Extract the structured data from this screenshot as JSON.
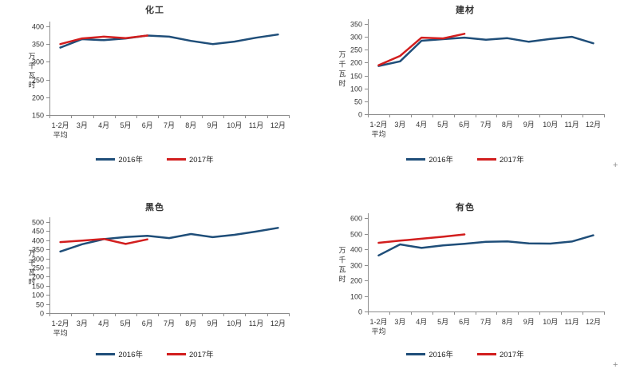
{
  "page": {
    "background": "#ffffff"
  },
  "colors": {
    "series_2016": "#1F4E79",
    "series_2017": "#D21E1E",
    "axis": "#8C8C8C",
    "text": "#333333"
  },
  "artifacts": {
    "plus_top": "+",
    "plus_bottom": "+"
  },
  "chart_data": [
    {
      "type": "line",
      "title": "化工",
      "ylabel": "万千瓦时",
      "categories": [
        "1-2月\n平均",
        "3月",
        "4月",
        "5月",
        "6月",
        "7月",
        "8月",
        "9月",
        "10月",
        "11月",
        "12月"
      ],
      "ylim": [
        150,
        400
      ],
      "yticks": [
        400,
        350,
        300,
        250,
        200,
        150
      ],
      "grid": false,
      "legend_position": "bottom",
      "series": [
        {
          "name": "2016年",
          "color": "#1F4E79",
          "values": [
            340,
            364,
            361,
            366,
            374,
            371,
            359,
            350,
            357,
            368,
            377
          ]
        },
        {
          "name": "2017年",
          "color": "#D21E1E",
          "values": [
            350,
            366,
            371,
            367,
            374
          ]
        }
      ]
    },
    {
      "type": "line",
      "title": "建材",
      "ylabel": "万千瓦时",
      "categories": [
        "1-2月\n平均",
        "3月",
        "4月",
        "5月",
        "6月",
        "7月",
        "8月",
        "9月",
        "10月",
        "11月",
        "12月"
      ],
      "ylim": [
        0,
        350
      ],
      "yticks": [
        350,
        300,
        250,
        200,
        150,
        100,
        50,
        0
      ],
      "grid": false,
      "legend_position": "bottom",
      "series": [
        {
          "name": "2016年",
          "color": "#1F4E79",
          "values": [
            187,
            205,
            285,
            291,
            297,
            289,
            295,
            281,
            292,
            300,
            275
          ]
        },
        {
          "name": "2017年",
          "color": "#D21E1E",
          "values": [
            190,
            226,
            297,
            294,
            312
          ]
        }
      ]
    },
    {
      "type": "line",
      "title": "黑色",
      "ylabel": "万千瓦时",
      "categories": [
        "1-2月\n平均",
        "3月",
        "4月",
        "5月",
        "6月",
        "7月",
        "8月",
        "9月",
        "10月",
        "11月",
        "12月"
      ],
      "ylim": [
        0,
        500
      ],
      "yticks": [
        500,
        450,
        400,
        350,
        300,
        250,
        200,
        150,
        100,
        50,
        0
      ],
      "grid": false,
      "legend_position": "bottom",
      "series": [
        {
          "name": "2016年",
          "color": "#1F4E79",
          "values": [
            338,
            378,
            406,
            418,
            424,
            412,
            434,
            417,
            430,
            448,
            468
          ]
        },
        {
          "name": "2017年",
          "color": "#D21E1E",
          "values": [
            390,
            398,
            407,
            380,
            405
          ]
        }
      ]
    },
    {
      "type": "line",
      "title": "有色",
      "ylabel": "万千瓦时",
      "categories": [
        "1-2月\n平均",
        "3月",
        "4月",
        "5月",
        "6月",
        "7月",
        "8月",
        "9月",
        "10月",
        "11月",
        "12月"
      ],
      "ylim": [
        0,
        600
      ],
      "yticks": [
        600,
        500,
        400,
        300,
        200,
        100,
        0
      ],
      "grid": false,
      "legend_position": "bottom",
      "series": [
        {
          "name": "2016年",
          "color": "#1F4E79",
          "values": [
            360,
            431,
            408,
            424,
            435,
            447,
            450,
            437,
            436,
            449,
            489
          ]
        },
        {
          "name": "2017年",
          "color": "#D21E1E",
          "values": [
            441,
            455,
            467,
            480,
            495
          ]
        }
      ]
    }
  ]
}
